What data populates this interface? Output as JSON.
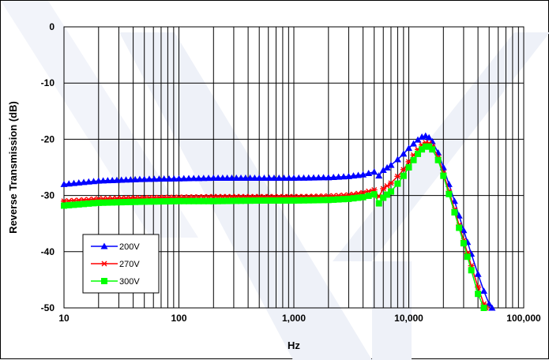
{
  "chart_data": {
    "type": "line",
    "title": "",
    "xlabel": "Hz",
    "ylabel": "Reverse Transmission (dB)",
    "xscale": "log",
    "xlim": [
      10,
      100000
    ],
    "ylim": [
      -50,
      0
    ],
    "x_ticks": [
      10,
      100,
      1000,
      10000,
      100000
    ],
    "x_tick_labels": [
      "10",
      "100",
      "1,000",
      "10,000",
      "100,000"
    ],
    "y_ticks": [
      0,
      -10,
      -20,
      -30,
      -40,
      -50
    ],
    "y_tick_labels": [
      "0",
      "-10",
      "-20",
      "-30",
      "-40",
      "-50"
    ],
    "grid": true,
    "legend_position": "bottom-left",
    "series": [
      {
        "name": "200V",
        "color": "#0000ff",
        "marker": "triangle",
        "x": [
          10,
          20,
          50,
          100,
          200,
          500,
          1000,
          2000,
          3000,
          4000,
          5000,
          5500,
          6000,
          7000,
          8000,
          9000,
          10000,
          11000,
          12000,
          13000,
          14000,
          15000,
          16000,
          18000,
          20000,
          25000,
          30000,
          35000,
          40000,
          45000,
          50000,
          53000
        ],
        "y": [
          -28.0,
          -27.4,
          -27.1,
          -27.0,
          -26.9,
          -26.9,
          -26.9,
          -26.8,
          -26.6,
          -26.3,
          -25.8,
          -26.5,
          -25.5,
          -24.6,
          -23.6,
          -22.6,
          -21.6,
          -20.8,
          -20.1,
          -19.6,
          -19.4,
          -19.7,
          -20.4,
          -22.4,
          -25.0,
          -31.0,
          -36.2,
          -40.4,
          -44.0,
          -47.0,
          -49.3,
          -50.0
        ]
      },
      {
        "name": "270V",
        "color": "#ff0000",
        "marker": "asterisk",
        "x": [
          10,
          20,
          50,
          100,
          200,
          500,
          1000,
          2000,
          3000,
          4000,
          5000,
          5500,
          6000,
          7000,
          8000,
          9000,
          10000,
          11000,
          12000,
          13000,
          14000,
          15000,
          16000,
          18000,
          20000,
          25000,
          30000,
          35000,
          40000,
          45000,
          47000
        ],
        "y": [
          -31.0,
          -30.6,
          -30.4,
          -30.3,
          -30.2,
          -30.2,
          -30.2,
          -30.1,
          -29.9,
          -29.5,
          -29.0,
          -30.2,
          -28.8,
          -27.8,
          -26.6,
          -25.4,
          -24.0,
          -22.8,
          -21.8,
          -21.0,
          -20.6,
          -20.7,
          -21.2,
          -23.2,
          -26.0,
          -32.5,
          -38.0,
          -42.5,
          -46.3,
          -49.3,
          -50.0
        ]
      },
      {
        "name": "300V",
        "color": "#00ff00",
        "marker": "square",
        "x": [
          10,
          20,
          50,
          100,
          200,
          500,
          1000,
          2000,
          3000,
          4000,
          5000,
          5500,
          6000,
          7000,
          8000,
          9000,
          10000,
          11000,
          12000,
          13000,
          14000,
          15000,
          16000,
          18000,
          20000,
          25000,
          30000,
          35000,
          40000,
          45000
        ],
        "y": [
          -31.8,
          -31.3,
          -31.1,
          -31.0,
          -31.0,
          -30.9,
          -30.9,
          -30.8,
          -30.6,
          -30.3,
          -29.8,
          -31.4,
          -30.4,
          -29.3,
          -27.9,
          -26.5,
          -25.0,
          -23.7,
          -22.6,
          -21.8,
          -21.3,
          -21.3,
          -21.8,
          -23.7,
          -26.5,
          -33.0,
          -38.5,
          -43.3,
          -47.5,
          -50.0
        ]
      }
    ]
  }
}
